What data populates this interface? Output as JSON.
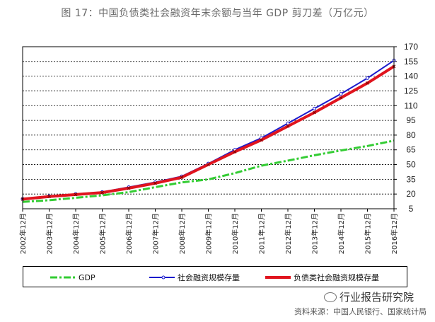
{
  "title": "图 17：中国负债类社会融资年末余额与当年 GDP 剪刀差（万亿元）",
  "source": "资料来源：中国人民银行、国家统计局",
  "watermark": "行业报告研究院",
  "colors": {
    "gdp": "#33cc33",
    "tsf": "#1a1acc",
    "debt_tsf": "#e0141e",
    "grid": "#000000"
  },
  "chart_data": {
    "type": "line",
    "title": "中国负债类社会融资年末余额与当年 GDP 剪刀差（万亿元）",
    "x": [
      "2002年12月",
      "2003年12月",
      "2004年12月",
      "2005年12月",
      "2006年12月",
      "2007年12月",
      "2008年12月",
      "2009年12月",
      "2010年12月",
      "2011年12月",
      "2012年12月",
      "2013年12月",
      "2014年12月",
      "2015年12月",
      "2016年12月"
    ],
    "ylim": [
      5,
      170
    ],
    "yticks": [
      5,
      20,
      35,
      50,
      65,
      80,
      95,
      110,
      125,
      140,
      155,
      170
    ],
    "yaxis_position": "right",
    "grid": true,
    "legend_position": "bottom",
    "series": [
      {
        "name": "GDP",
        "key": "gdp",
        "style": "dash-dot",
        "values": [
          12.0,
          13.7,
          16.2,
          18.7,
          21.9,
          27.0,
          31.9,
          34.9,
          41.3,
          48.9,
          54.0,
          59.5,
          64.4,
          68.9,
          74.4
        ]
      },
      {
        "name": "社会融资规模存量",
        "key": "tsf",
        "style": "solid",
        "values": [
          15.0,
          18.0,
          20.0,
          22.0,
          27.0,
          32.0,
          38.0,
          51.0,
          65.0,
          77.0,
          92.0,
          107.0,
          122.0,
          138.0,
          156.0
        ]
      },
      {
        "name": "负债类社会融资规模存量",
        "key": "debt_tsf",
        "style": "solid",
        "values": [
          14.8,
          17.5,
          19.5,
          21.5,
          26.0,
          31.0,
          37.0,
          50.0,
          63.0,
          75.0,
          89.0,
          103.0,
          118.0,
          133.0,
          150.0
        ]
      }
    ]
  }
}
